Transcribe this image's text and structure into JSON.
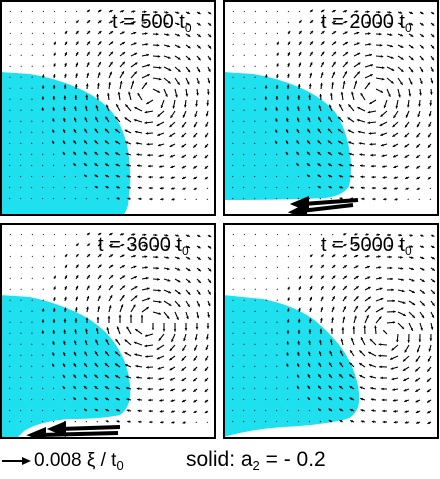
{
  "panels": [
    {
      "id": "p1",
      "time_value": "t = 500 t",
      "time_sub": "0",
      "time_prefix": "t = ",
      "time_unit": "t"
    },
    {
      "id": "p2",
      "time_value": "t = 2000 t",
      "time_sub": "0",
      "time_prefix": "t = ",
      "time_unit": "t"
    },
    {
      "id": "p3",
      "time_value": "t = 3600 t",
      "time_sub": "0",
      "time_prefix": "t = ",
      "time_unit": "t"
    },
    {
      "id": "p4",
      "time_value": "t = 5000 t",
      "time_sub": "0",
      "time_prefix": "t = ",
      "time_unit": "t"
    }
  ],
  "legend": {
    "scale_text": "0.008 ξ / t",
    "scale_sub": "0",
    "solid_text": "solid: a",
    "solid_sub": "2",
    "solid_value": " = - 0.2"
  },
  "colors": {
    "solid": "#1fe0ee",
    "frame": "#000000",
    "arrow": "#000000",
    "background": "#ffffff"
  }
}
